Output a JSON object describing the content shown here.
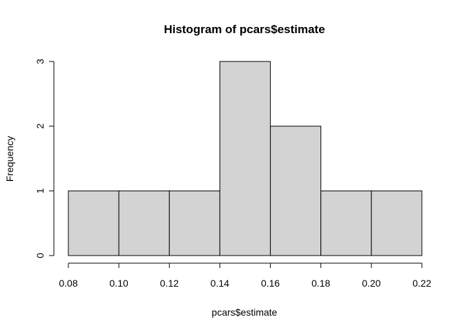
{
  "chart_data": {
    "type": "bar",
    "title": "Histogram of pcars$estimate",
    "xlabel": "pcars$estimate",
    "ylabel": "Frequency",
    "bins": [
      {
        "from": 0.08,
        "to": 0.1,
        "count": 1
      },
      {
        "from": 0.1,
        "to": 0.12,
        "count": 1
      },
      {
        "from": 0.12,
        "to": 0.14,
        "count": 1
      },
      {
        "from": 0.14,
        "to": 0.16,
        "count": 3
      },
      {
        "from": 0.16,
        "to": 0.18,
        "count": 2
      },
      {
        "from": 0.18,
        "to": 0.2,
        "count": 1
      },
      {
        "from": 0.2,
        "to": 0.22,
        "count": 1
      }
    ],
    "x_ticks": [
      "0.08",
      "0.10",
      "0.12",
      "0.14",
      "0.16",
      "0.18",
      "0.20",
      "0.22"
    ],
    "y_ticks": [
      "0",
      "1",
      "2",
      "3"
    ],
    "xlim": [
      0.08,
      0.22
    ],
    "ylim": [
      0,
      3
    ],
    "grid": false,
    "legend": "none",
    "colors": {
      "bar_fill": "#d3d3d3",
      "bar_stroke": "#000000",
      "axis": "#000000",
      "background": "#ffffff"
    }
  }
}
